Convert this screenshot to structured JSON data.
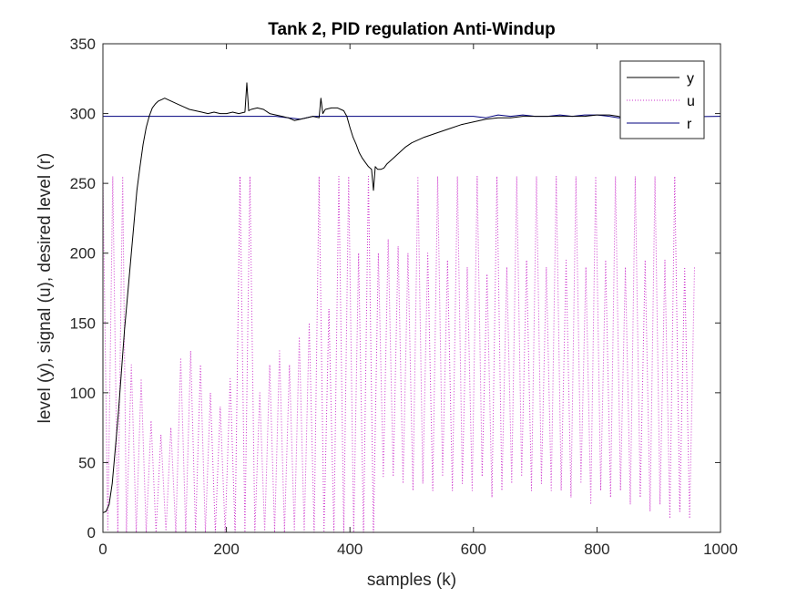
{
  "chart_data": {
    "type": "line",
    "title": "Tank 2, PID regulation Anti-Windup",
    "xlabel": "samples (k)",
    "ylabel": "level (y), signal (u), desired level (r)",
    "xlim": [
      0,
      1000
    ],
    "ylim": [
      0,
      350
    ],
    "xticks": [
      0,
      200,
      400,
      600,
      800,
      1000
    ],
    "yticks": [
      0,
      50,
      100,
      150,
      200,
      250,
      300,
      350
    ],
    "xtick_labels": [
      "0",
      "200",
      "400",
      "600",
      "800",
      "1000"
    ],
    "ytick_labels": [
      "0",
      "50",
      "100",
      "150",
      "200",
      "250",
      "300",
      "350"
    ],
    "grid": false,
    "legend_position": "top-right",
    "series": [
      {
        "name": "y",
        "color": "#000000",
        "style": "solid",
        "x": [
          0,
          5,
          10,
          15,
          20,
          25,
          30,
          35,
          40,
          45,
          50,
          55,
          60,
          65,
          70,
          75,
          80,
          85,
          90,
          95,
          100,
          110,
          120,
          130,
          140,
          150,
          160,
          170,
          180,
          190,
          200,
          210,
          220,
          230,
          233,
          236,
          240,
          250,
          260,
          270,
          280,
          290,
          300,
          310,
          320,
          330,
          340,
          350,
          353,
          356,
          360,
          370,
          380,
          390,
          395,
          400,
          405,
          410,
          415,
          420,
          425,
          430,
          435,
          438,
          441,
          445,
          450,
          455,
          460,
          470,
          480,
          490,
          500,
          520,
          540,
          560,
          580,
          600,
          620,
          640,
          660,
          680,
          700,
          720,
          740,
          760,
          780,
          800,
          820,
          835,
          840
        ],
        "y": [
          14,
          15,
          20,
          35,
          60,
          85,
          115,
          145,
          170,
          195,
          220,
          245,
          262,
          278,
          290,
          298,
          304,
          307,
          309,
          310,
          311,
          309,
          307,
          305,
          303,
          302,
          301,
          300,
          301,
          300,
          300,
          301,
          300,
          301,
          322,
          302,
          303,
          304,
          303,
          300,
          299,
          298,
          297,
          295,
          296,
          297,
          298,
          297,
          311,
          300,
          303,
          304,
          304,
          302,
          298,
          290,
          283,
          278,
          272,
          268,
          265,
          262,
          260,
          245,
          262,
          260,
          260,
          261,
          264,
          268,
          272,
          276,
          279,
          283,
          286,
          289,
          292,
          294,
          296,
          297,
          297,
          298,
          298,
          298,
          298,
          298,
          298,
          299,
          299,
          298,
          297
        ]
      },
      {
        "name": "u",
        "color": "#cc33cc",
        "style": "dotted",
        "x": [
          0,
          8,
          16,
          24,
          32,
          38,
          46,
          54,
          62,
          70,
          78,
          86,
          94,
          102,
          110,
          118,
          126,
          134,
          142,
          150,
          158,
          166,
          174,
          182,
          190,
          198,
          206,
          214,
          222,
          230,
          238,
          246,
          254,
          262,
          270,
          278,
          286,
          294,
          302,
          310,
          318,
          326,
          334,
          342,
          350,
          358,
          366,
          374,
          382,
          390,
          398,
          406,
          414,
          422,
          430,
          438,
          446,
          454,
          462,
          470,
          478,
          486,
          494,
          502,
          510,
          518,
          526,
          534,
          542,
          550,
          558,
          566,
          574,
          582,
          590,
          598,
          606,
          614,
          622,
          630,
          638,
          646,
          654,
          662,
          670,
          678,
          686,
          694,
          702,
          710,
          718,
          726,
          734,
          742,
          750,
          758,
          766,
          774,
          782,
          790,
          798,
          806,
          814,
          822,
          830,
          838,
          846,
          854,
          862,
          870,
          878,
          886,
          894,
          902,
          910,
          918,
          926,
          934,
          942,
          950,
          958
        ],
        "y": [
          255,
          0,
          255,
          0,
          255,
          0,
          120,
          0,
          110,
          0,
          80,
          0,
          70,
          0,
          75,
          0,
          125,
          0,
          130,
          0,
          120,
          0,
          100,
          0,
          90,
          0,
          110,
          0,
          255,
          0,
          255,
          0,
          100,
          0,
          120,
          0,
          130,
          0,
          120,
          0,
          140,
          0,
          150,
          0,
          255,
          0,
          160,
          0,
          255,
          0,
          255,
          0,
          200,
          0,
          255,
          0,
          200,
          40,
          210,
          40,
          205,
          35,
          200,
          30,
          255,
          35,
          200,
          30,
          255,
          40,
          195,
          30,
          255,
          35,
          190,
          30,
          255,
          40,
          185,
          25,
          255,
          30,
          190,
          35,
          255,
          40,
          195,
          30,
          255,
          35,
          190,
          30,
          255,
          30,
          195,
          25,
          255,
          35,
          190,
          20,
          255,
          30,
          195,
          25,
          255,
          30,
          190,
          20,
          255,
          25,
          195,
          15,
          255,
          20,
          195,
          10,
          255,
          15,
          190,
          10,
          190
        ]
      },
      {
        "name": "r",
        "color": "#00007f",
        "style": "solid",
        "x": [
          0,
          270,
          280,
          300,
          320,
          340,
          345,
          600,
          620,
          640,
          660,
          680,
          700,
          720,
          740,
          760,
          780,
          800,
          820,
          835,
          1000
        ],
        "y": [
          298,
          298,
          298,
          297,
          296,
          298,
          298,
          298,
          297,
          299,
          298,
          299,
          298,
          298,
          299,
          298,
          299,
          299,
          298,
          297,
          298
        ]
      }
    ]
  }
}
